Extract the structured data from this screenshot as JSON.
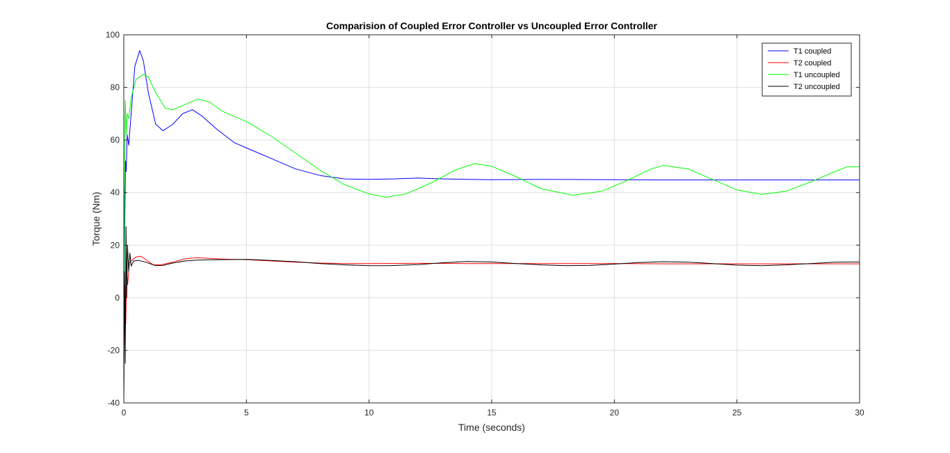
{
  "chart_data": {
    "type": "line",
    "title": "Comparision of Coupled Error Controller vs Uncoupled Error Controller",
    "xlabel": "Time (seconds)",
    "ylabel": "Torque (Nm)",
    "xlim": [
      0,
      30
    ],
    "ylim": [
      -40,
      100
    ],
    "xticks": [
      0,
      5,
      10,
      15,
      20,
      25,
      30
    ],
    "yticks": [
      -40,
      -20,
      0,
      20,
      40,
      60,
      80,
      100
    ],
    "grid": true,
    "legend_position": "top-right",
    "series": [
      {
        "name": "T1 coupled",
        "color": "#0000ff",
        "points": [
          [
            0,
            -40
          ],
          [
            0.03,
            20
          ],
          [
            0.07,
            52
          ],
          [
            0.1,
            48
          ],
          [
            0.14,
            62
          ],
          [
            0.2,
            58
          ],
          [
            0.3,
            70
          ],
          [
            0.45,
            88
          ],
          [
            0.65,
            94
          ],
          [
            0.8,
            90
          ],
          [
            1.0,
            78
          ],
          [
            1.3,
            66
          ],
          [
            1.6,
            63.5
          ],
          [
            2.0,
            66
          ],
          [
            2.4,
            70
          ],
          [
            2.8,
            71.5
          ],
          [
            3.2,
            69
          ],
          [
            3.8,
            64
          ],
          [
            4.5,
            59
          ],
          [
            5.0,
            57
          ],
          [
            6.0,
            53
          ],
          [
            7.0,
            49
          ],
          [
            8.0,
            46.5
          ],
          [
            9.0,
            45.2
          ],
          [
            10.0,
            45
          ],
          [
            11.0,
            45.2
          ],
          [
            12.0,
            45.5
          ],
          [
            13.0,
            45.2
          ],
          [
            14.0,
            45
          ],
          [
            15.0,
            44.9
          ],
          [
            17.0,
            45
          ],
          [
            20.0,
            44.9
          ],
          [
            22.0,
            44.8
          ],
          [
            25.0,
            44.8
          ],
          [
            28.0,
            44.8
          ],
          [
            30.0,
            44.8
          ]
        ]
      },
      {
        "name": "T2 coupled",
        "color": "#ff0000",
        "points": [
          [
            0,
            -35
          ],
          [
            0.04,
            5
          ],
          [
            0.08,
            -10
          ],
          [
            0.12,
            10
          ],
          [
            0.16,
            5
          ],
          [
            0.22,
            13
          ],
          [
            0.3,
            14
          ],
          [
            0.5,
            15.5
          ],
          [
            0.7,
            15.8
          ],
          [
            0.9,
            14.5
          ],
          [
            1.2,
            12.5
          ],
          [
            1.5,
            12.5
          ],
          [
            2.0,
            13.5
          ],
          [
            2.5,
            14.8
          ],
          [
            3.0,
            15.2
          ],
          [
            3.5,
            15.0
          ],
          [
            4.0,
            14.7
          ],
          [
            4.5,
            14.6
          ],
          [
            5.0,
            14.5
          ],
          [
            6.0,
            14.0
          ],
          [
            7.0,
            13.5
          ],
          [
            8.0,
            13.2
          ],
          [
            9.0,
            13.0
          ],
          [
            10.0,
            13.0
          ],
          [
            12.0,
            13.1
          ],
          [
            14.0,
            13.0
          ],
          [
            16.0,
            13.0
          ],
          [
            18.0,
            13.0
          ],
          [
            20.0,
            13.0
          ],
          [
            22.0,
            12.9
          ],
          [
            25.0,
            12.9
          ],
          [
            28.0,
            12.9
          ],
          [
            30.0,
            12.9
          ]
        ]
      },
      {
        "name": "T1 uncoupled",
        "color": "#00ff00",
        "points": [
          [
            0,
            -40
          ],
          [
            0.03,
            40
          ],
          [
            0.06,
            75
          ],
          [
            0.1,
            62
          ],
          [
            0.14,
            70
          ],
          [
            0.2,
            68
          ],
          [
            0.3,
            76
          ],
          [
            0.5,
            83
          ],
          [
            0.8,
            85
          ],
          [
            1.0,
            84
          ],
          [
            1.3,
            78
          ],
          [
            1.7,
            72
          ],
          [
            2.0,
            71.5
          ],
          [
            2.5,
            73.5
          ],
          [
            3.0,
            75.5
          ],
          [
            3.5,
            74.5
          ],
          [
            4.0,
            71
          ],
          [
            5.0,
            67
          ],
          [
            6.0,
            61.5
          ],
          [
            7.0,
            55
          ],
          [
            8.0,
            48.5
          ],
          [
            9.0,
            43
          ],
          [
            10.0,
            39.5
          ],
          [
            10.7,
            38.2
          ],
          [
            11.5,
            39.5
          ],
          [
            12.5,
            43.5
          ],
          [
            13.5,
            48.5
          ],
          [
            14.3,
            51
          ],
          [
            15.0,
            50
          ],
          [
            16.0,
            46
          ],
          [
            17.0,
            41.5
          ],
          [
            18.3,
            39
          ],
          [
            19.5,
            40.5
          ],
          [
            20.5,
            44.5
          ],
          [
            21.5,
            49
          ],
          [
            22.0,
            50.3
          ],
          [
            23.0,
            49
          ],
          [
            24.0,
            45
          ],
          [
            25.0,
            41
          ],
          [
            26.0,
            39.3
          ],
          [
            27.0,
            40.5
          ],
          [
            28.0,
            44
          ],
          [
            29.0,
            48
          ],
          [
            29.5,
            49.8
          ],
          [
            30.0,
            49.8
          ]
        ]
      },
      {
        "name": "T2 uncoupled",
        "color": "#000000",
        "points": [
          [
            0,
            -40
          ],
          [
            0.03,
            10
          ],
          [
            0.06,
            -25
          ],
          [
            0.09,
            27
          ],
          [
            0.12,
            0
          ],
          [
            0.15,
            20
          ],
          [
            0.2,
            10
          ],
          [
            0.25,
            17
          ],
          [
            0.3,
            12
          ],
          [
            0.4,
            14
          ],
          [
            0.6,
            14.2
          ],
          [
            0.9,
            13.5
          ],
          [
            1.3,
            12.2
          ],
          [
            1.6,
            12.3
          ],
          [
            2.0,
            13.2
          ],
          [
            2.5,
            14.0
          ],
          [
            3.0,
            14.3
          ],
          [
            4.0,
            14.5
          ],
          [
            5.0,
            14.6
          ],
          [
            6.0,
            14.2
          ],
          [
            7.0,
            13.7
          ],
          [
            8.0,
            13.0
          ],
          [
            9.0,
            12.5
          ],
          [
            10.0,
            12.2
          ],
          [
            10.8,
            12.2
          ],
          [
            12.0,
            12.6
          ],
          [
            13.0,
            13.3
          ],
          [
            14.0,
            13.8
          ],
          [
            15.0,
            13.6
          ],
          [
            16.0,
            13.0
          ],
          [
            17.0,
            12.5
          ],
          [
            18.0,
            12.2
          ],
          [
            19.0,
            12.3
          ],
          [
            20.0,
            12.8
          ],
          [
            21.0,
            13.4
          ],
          [
            22.0,
            13.7
          ],
          [
            23.0,
            13.5
          ],
          [
            24.0,
            13.0
          ],
          [
            25.0,
            12.4
          ],
          [
            26.0,
            12.2
          ],
          [
            27.0,
            12.5
          ],
          [
            28.0,
            13.0
          ],
          [
            29.0,
            13.5
          ],
          [
            30.0,
            13.6
          ]
        ]
      }
    ]
  }
}
